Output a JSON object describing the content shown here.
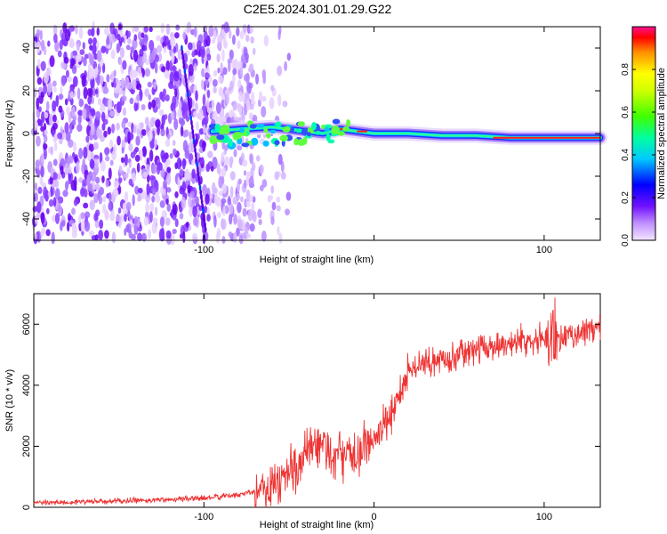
{
  "title": "C2E5.2024.301.01.29.G22",
  "chart_data": [
    {
      "type": "heatmap",
      "xlabel": "Height of straight line (km)",
      "ylabel": "Frequency (Hz)",
      "xlim": [
        -200,
        133
      ],
      "ylim": [
        -50,
        50
      ],
      "xticks": [
        -100,
        0,
        100
      ],
      "xtick_labels": [
        "-100",
        "",
        "100"
      ],
      "yticks": [
        -40,
        -20,
        0,
        20,
        40
      ],
      "ytick_labels": [
        "-40",
        "-20",
        "0",
        "20",
        "40"
      ],
      "colorbar": {
        "label": "Normalized spectral amplitude",
        "range": [
          0,
          1
        ],
        "ticks": [
          0.0,
          0.2,
          0.4,
          0.6,
          0.8
        ],
        "tick_labels": [
          "0.0",
          "0.2",
          "0.4",
          "0.6",
          "0.8"
        ]
      },
      "signal_track": [
        {
          "x": -95,
          "y": 1
        },
        {
          "x": -80,
          "y": 2
        },
        {
          "x": -60,
          "y": 3
        },
        {
          "x": -40,
          "y": 1
        },
        {
          "x": -30,
          "y": 0
        },
        {
          "x": -20,
          "y": 2
        },
        {
          "x": -10,
          "y": 1
        },
        {
          "x": 0,
          "y": 0
        },
        {
          "x": 20,
          "y": 0
        },
        {
          "x": 40,
          "y": -1
        },
        {
          "x": 60,
          "y": -1
        },
        {
          "x": 80,
          "y": -2
        },
        {
          "x": 100,
          "y": -2
        },
        {
          "x": 133,
          "y": -2
        }
      ],
      "grid": false
    },
    {
      "type": "line",
      "xlabel": "Height of straight line (km)",
      "ylabel": "SNR (10 * v/v)",
      "xlim": [
        -200,
        133
      ],
      "ylim": [
        0,
        7000
      ],
      "xticks": [
        -100,
        0,
        100
      ],
      "xtick_labels": [
        "-100",
        "0",
        "100"
      ],
      "yticks": [
        0,
        2000,
        4000,
        6000
      ],
      "ytick_labels": [
        "0",
        "2000",
        "4000",
        "6000"
      ],
      "series": [
        {
          "color": "#ee3333",
          "x": [
            -200,
            -150,
            -100,
            -80,
            -60,
            -50,
            -40,
            -30,
            -20,
            -10,
            0,
            10,
            20,
            30,
            50,
            70,
            90,
            100,
            110,
            120,
            133
          ],
          "y": [
            150,
            200,
            300,
            400,
            700,
            1100,
            1700,
            2000,
            1600,
            1800,
            2200,
            3000,
            4500,
            4700,
            5000,
            5300,
            5500,
            5600,
            5500,
            5700,
            5900
          ]
        }
      ],
      "grid": false
    }
  ]
}
